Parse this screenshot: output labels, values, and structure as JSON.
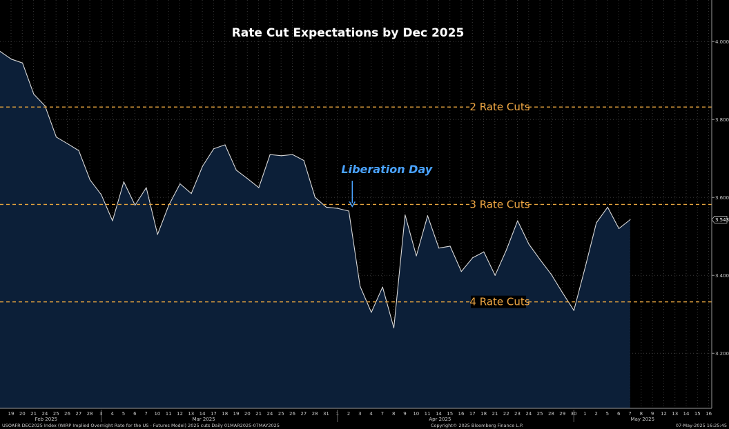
{
  "chart_data": {
    "type": "area",
    "title": "Rate Cut Expectations by Dec 2025",
    "y_axis": {
      "ylim": [
        3.05,
        4.05
      ],
      "ticks": [
        "3.200",
        "3.400",
        "3.600",
        "3.800",
        "4.000"
      ],
      "tick_values": [
        3.2,
        3.4,
        3.6,
        3.8,
        4.0
      ],
      "side": "right"
    },
    "x_axis": {
      "tick_labels": [
        "19",
        "20",
        "21",
        "24",
        "25",
        "26",
        "27",
        "28",
        "3",
        "4",
        "5",
        "6",
        "7",
        "10",
        "11",
        "12",
        "13",
        "14",
        "17",
        "18",
        "19",
        "20",
        "21",
        "24",
        "25",
        "26",
        "27",
        "28",
        "31",
        "1",
        "2",
        "3",
        "4",
        "7",
        "8",
        "9",
        "10",
        "11",
        "14",
        "15",
        "16",
        "17",
        "18",
        "21",
        "22",
        "23",
        "24",
        "25",
        "28",
        "29",
        "30",
        "1",
        "2",
        "5",
        "6",
        "7",
        "8",
        "9",
        "12",
        "13",
        "14",
        "15",
        "16"
      ],
      "month_labels": [
        {
          "label": "Feb 2025",
          "index": 3
        },
        {
          "label": "Mar 2025",
          "index": 17
        },
        {
          "label": "Apr 2025",
          "index": 38
        },
        {
          "label": "May 2025",
          "index": 56
        }
      ]
    },
    "grid": true,
    "series": [
      {
        "color": "#d8d8d8",
        "fill": "#0c1f38",
        "x_start_index": 0,
        "values": [
          3.975,
          3.955,
          3.945,
          3.865,
          3.835,
          3.755,
          3.738,
          3.72,
          3.645,
          3.607,
          3.54,
          3.64,
          3.58,
          3.625,
          3.505,
          3.58,
          3.635,
          3.61,
          3.68,
          3.725,
          3.735,
          3.67,
          3.648,
          3.625,
          3.71,
          3.707,
          3.71,
          3.695,
          3.6,
          3.575,
          3.572,
          3.565,
          3.372,
          3.305,
          3.37,
          3.265,
          3.555,
          3.45,
          3.553,
          3.47,
          3.475,
          3.41,
          3.445,
          3.46,
          3.4,
          3.465,
          3.54,
          3.48,
          3.44,
          3.402,
          3.355,
          3.31,
          3.42,
          3.535,
          3.575,
          3.52,
          3.543
        ]
      }
    ],
    "last_value_label": "3.543",
    "reference_lines": [
      {
        "label": "2 Rate Cuts",
        "y": 3.832
      },
      {
        "label": "3 Rate Cuts",
        "y": 3.582
      },
      {
        "label": "4 Rate Cuts",
        "y": 3.332
      }
    ],
    "annotations": [
      {
        "label": "Liberation Day",
        "x_index": 31,
        "arrow_from_y": 3.69,
        "arrow_to_y": 3.575
      }
    ],
    "colors": {
      "background": "#000000",
      "line": "#d8d8d8",
      "area_fill": "#0c1f38",
      "reference": "#e5a33d",
      "annotation": "#4aa3ff"
    }
  },
  "footer": {
    "left": "USOAFR DEC2025 Index (WIRP Implied Overnight Rate for the US - Futures Model) 2025 cuts  Daily 01MAR2025-07MAY2025",
    "center": "Copyright© 2025 Bloomberg Finance L.P.",
    "right": "07-May-2025 16:25:45"
  }
}
